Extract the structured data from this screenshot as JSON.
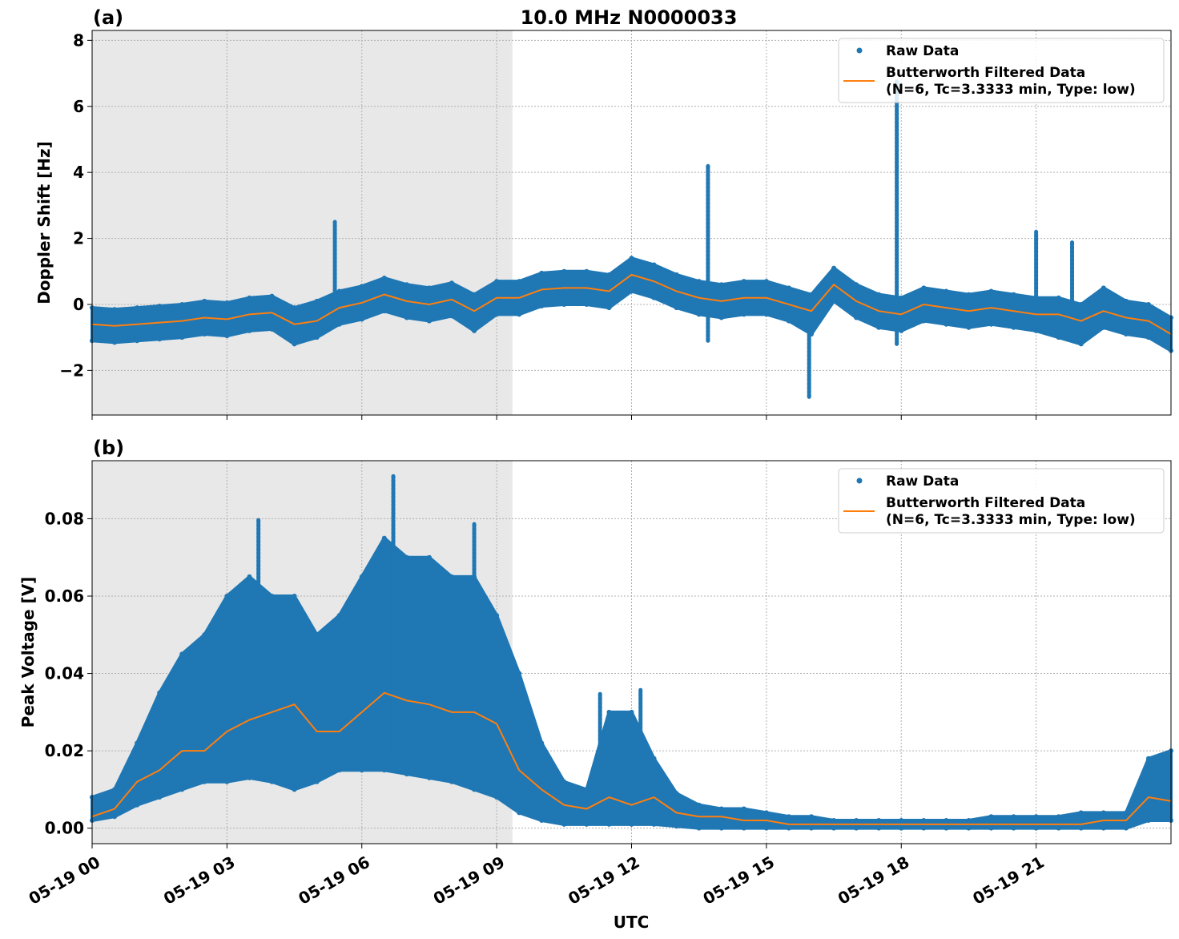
{
  "chart_data": [
    {
      "type": "scatter+line",
      "panel_label": "(a)",
      "title": "10.0 MHz N0000033",
      "ylabel": "Doppler Shift [Hz]",
      "xlabel": "",
      "ylim": [
        -3.35,
        8.3
      ],
      "yticks": [
        -2,
        0,
        2,
        4,
        6,
        8
      ],
      "ytick_labels": [
        "−2",
        "0",
        "2",
        "4",
        "6",
        "8"
      ],
      "x_hours_step": 0.5,
      "xlim_hours": [
        0,
        24
      ],
      "grid": true,
      "legend_placement": "top-right",
      "shaded_hours": [
        0,
        9.35
      ],
      "series": [
        {
          "name": "Raw Data",
          "color": "#1f77b4",
          "kind": "dots",
          "upper": [
            -0.1,
            -0.15,
            -0.1,
            -0.05,
            0.0,
            0.1,
            0.05,
            0.2,
            0.25,
            -0.1,
            0.1,
            0.4,
            0.55,
            0.8,
            0.6,
            0.5,
            0.65,
            0.3,
            0.7,
            0.7,
            0.95,
            1.0,
            1.0,
            0.9,
            1.4,
            1.2,
            0.9,
            0.7,
            0.6,
            0.7,
            0.7,
            0.5,
            0.3,
            1.1,
            0.6,
            0.3,
            0.2,
            0.5,
            0.4,
            0.3,
            0.4,
            0.3,
            0.2,
            0.2,
            0.0,
            0.5,
            0.1,
            0.0,
            -0.4
          ],
          "lower": [
            -1.1,
            -1.15,
            -1.1,
            -1.05,
            -1.0,
            -0.9,
            -0.95,
            -0.8,
            -0.75,
            -1.2,
            -1.0,
            -0.6,
            -0.45,
            -0.2,
            -0.4,
            -0.5,
            -0.35,
            -0.8,
            -0.3,
            -0.3,
            -0.05,
            0.0,
            0.0,
            -0.1,
            0.4,
            0.2,
            -0.1,
            -0.3,
            -0.4,
            -0.3,
            -0.3,
            -0.5,
            -0.9,
            0.1,
            -0.4,
            -0.7,
            -0.8,
            -0.5,
            -0.6,
            -0.7,
            -0.6,
            -0.7,
            -0.8,
            -1.0,
            -1.2,
            -0.7,
            -0.9,
            -1.0,
            -1.4
          ],
          "spikes": [
            [
              5.4,
              -0.2,
              2.5
            ],
            [
              13.7,
              -1.1,
              4.2
            ],
            [
              15.95,
              -2.8,
              0.0
            ],
            [
              17.9,
              -1.2,
              6.8
            ],
            [
              21.0,
              -0.5,
              2.2
            ],
            [
              21.8,
              -0.5,
              1.9
            ]
          ]
        },
        {
          "name": "Butterworth Filtered Data\n(N=6, Tc=3.3333 min, Type: low)",
          "color": "#ff7f0e",
          "kind": "line",
          "values": [
            -0.6,
            -0.65,
            -0.6,
            -0.55,
            -0.5,
            -0.4,
            -0.45,
            -0.3,
            -0.25,
            -0.6,
            -0.5,
            -0.1,
            0.05,
            0.3,
            0.1,
            0.0,
            0.15,
            -0.2,
            0.2,
            0.2,
            0.45,
            0.5,
            0.5,
            0.4,
            0.9,
            0.7,
            0.4,
            0.2,
            0.1,
            0.2,
            0.2,
            0.0,
            -0.2,
            0.6,
            0.1,
            -0.2,
            -0.3,
            0.0,
            -0.1,
            -0.2,
            -0.1,
            -0.2,
            -0.3,
            -0.3,
            -0.5,
            -0.2,
            -0.4,
            -0.5,
            -0.9
          ]
        }
      ]
    },
    {
      "type": "scatter+line",
      "panel_label": "(b)",
      "title": "",
      "ylabel": "Peak Voltage [V]",
      "xlabel": "UTC",
      "ylim": [
        -0.004,
        0.095
      ],
      "yticks": [
        0,
        0.02,
        0.04,
        0.06,
        0.08
      ],
      "ytick_labels": [
        "0.00",
        "0.02",
        "0.04",
        "0.06",
        "0.08"
      ],
      "x_hours_step": 0.5,
      "xlim_hours": [
        0,
        24
      ],
      "grid": true,
      "legend_placement": "top-right",
      "shaded_hours": [
        0,
        9.35
      ],
      "series": [
        {
          "name": "Raw Data",
          "color": "#1f77b4",
          "kind": "dots",
          "upper": [
            0.008,
            0.01,
            0.022,
            0.035,
            0.045,
            0.05,
            0.06,
            0.065,
            0.06,
            0.06,
            0.05,
            0.055,
            0.065,
            0.075,
            0.07,
            0.07,
            0.065,
            0.065,
            0.055,
            0.04,
            0.022,
            0.012,
            0.01,
            0.03,
            0.03,
            0.018,
            0.009,
            0.006,
            0.005,
            0.005,
            0.004,
            0.003,
            0.003,
            0.002,
            0.002,
            0.002,
            0.002,
            0.002,
            0.002,
            0.002,
            0.003,
            0.003,
            0.003,
            0.003,
            0.004,
            0.004,
            0.004,
            0.018,
            0.02
          ],
          "lower": [
            0.002,
            0.003,
            0.006,
            0.008,
            0.01,
            0.012,
            0.012,
            0.013,
            0.012,
            0.01,
            0.012,
            0.015,
            0.015,
            0.015,
            0.014,
            0.013,
            0.012,
            0.01,
            0.008,
            0.004,
            0.002,
            0.001,
            0.001,
            0.001,
            0.001,
            0.001,
            0.0005,
            0,
            0,
            0,
            0,
            0,
            0,
            0,
            0,
            0,
            0,
            0,
            0,
            0,
            0,
            0,
            0,
            0,
            0,
            0,
            0,
            0.002,
            0.002
          ],
          "spikes": [
            [
              3.7,
              0.02,
              0.08
            ],
            [
              6.7,
              0.02,
              0.091
            ],
            [
              8.5,
              0.02,
              0.079
            ],
            [
              11.3,
              0.003,
              0.035
            ],
            [
              12.2,
              0.003,
              0.036
            ]
          ]
        },
        {
          "name": "Butterworth Filtered Data\n(N=6, Tc=3.3333 min, Type: low)",
          "color": "#ff7f0e",
          "kind": "line",
          "values": [
            0.003,
            0.005,
            0.012,
            0.015,
            0.02,
            0.02,
            0.025,
            0.028,
            0.03,
            0.032,
            0.025,
            0.025,
            0.03,
            0.035,
            0.033,
            0.032,
            0.03,
            0.03,
            0.027,
            0.015,
            0.01,
            0.006,
            0.005,
            0.008,
            0.006,
            0.008,
            0.004,
            0.003,
            0.003,
            0.002,
            0.002,
            0.001,
            0.001,
            0.001,
            0.001,
            0.001,
            0.001,
            0.001,
            0.001,
            0.001,
            0.001,
            0.001,
            0.001,
            0.001,
            0.001,
            0.002,
            0.002,
            0.008,
            0.007
          ]
        }
      ]
    }
  ],
  "xticks": {
    "hours": [
      0,
      3,
      6,
      9,
      12,
      15,
      18,
      21
    ],
    "labels": [
      "05-19 00",
      "05-19 03",
      "05-19 06",
      "05-19 09",
      "05-19 12",
      "05-19 15",
      "05-19 18",
      "05-19 21"
    ]
  },
  "legend": {
    "raw": "Raw Data",
    "filtered_line1": "Butterworth Filtered Data",
    "filtered_line2": "(N=6, Tc=3.3333 min, Type: low)"
  }
}
